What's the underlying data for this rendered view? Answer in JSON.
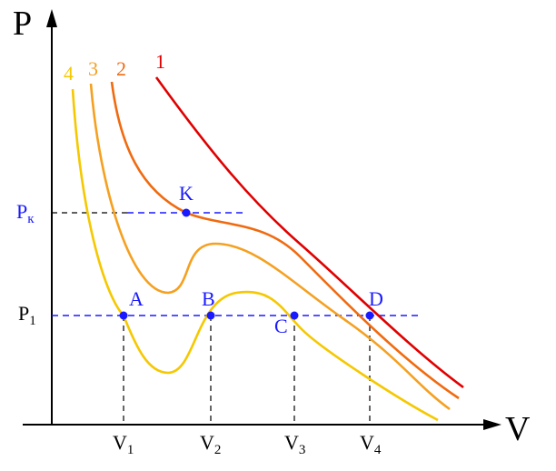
{
  "axes": {
    "y_label": "P",
    "x_label": "V"
  },
  "pressures": [
    {
      "main": "P",
      "sub": "к"
    },
    {
      "main": "P",
      "sub": "1"
    }
  ],
  "volumes": [
    {
      "main": "V",
      "sub": "1"
    },
    {
      "main": "V",
      "sub": "2"
    },
    {
      "main": "V",
      "sub": "3"
    },
    {
      "main": "V",
      "sub": "4"
    }
  ],
  "isotherms": [
    "1",
    "2",
    "3",
    "4"
  ],
  "points": [
    "K",
    "A",
    "B",
    "C",
    "D"
  ]
}
